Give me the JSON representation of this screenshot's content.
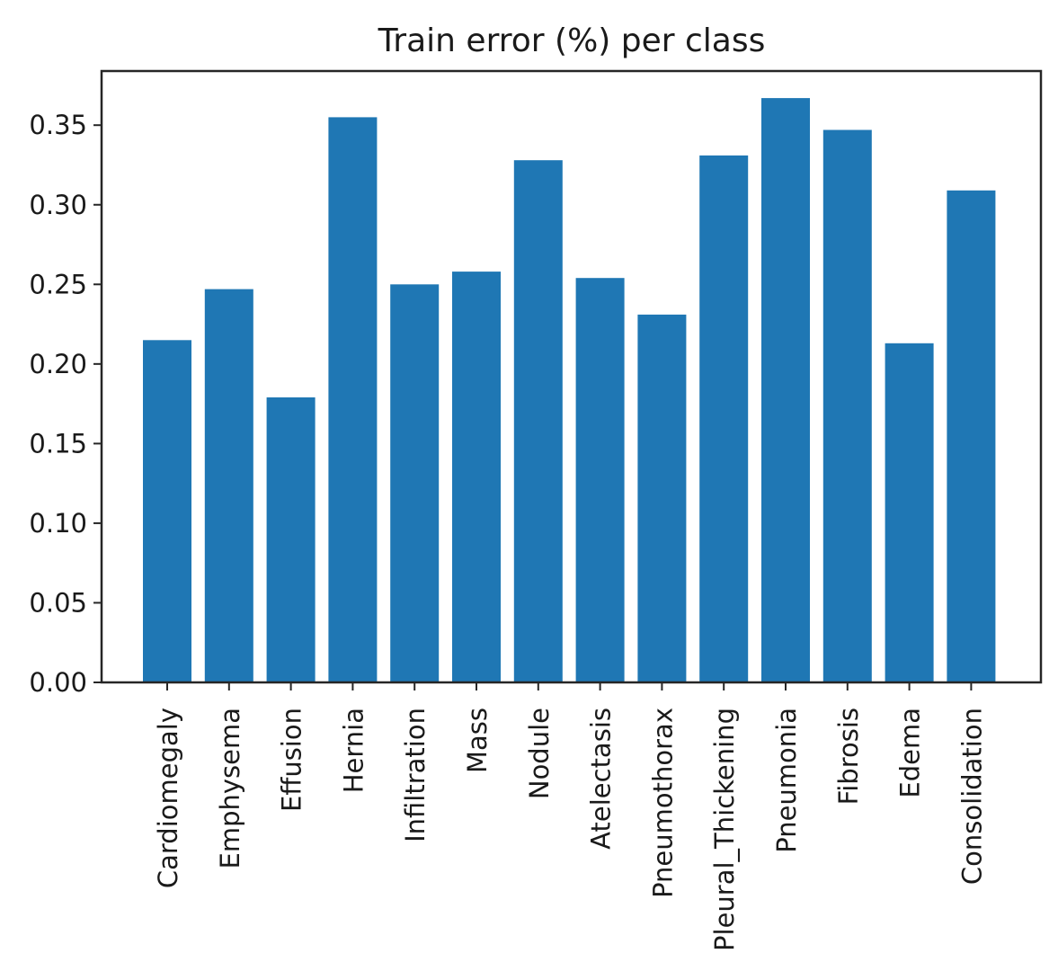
{
  "chart_data": {
    "type": "bar",
    "title": "Train error (%) per class",
    "xlabel": "",
    "ylabel": "",
    "categories": [
      "Cardiomegaly",
      "Emphysema",
      "Effusion",
      "Hernia",
      "Infiltration",
      "Mass",
      "Nodule",
      "Atelectasis",
      "Pneumothorax",
      "Pleural_Thickening",
      "Pneumonia",
      "Fibrosis",
      "Edema",
      "Consolidation"
    ],
    "values": [
      0.215,
      0.247,
      0.179,
      0.355,
      0.25,
      0.258,
      0.328,
      0.254,
      0.231,
      0.331,
      0.367,
      0.347,
      0.213,
      0.309
    ],
    "yticks": [
      "0.00",
      "0.05",
      "0.10",
      "0.15",
      "0.20",
      "0.25",
      "0.30",
      "0.35"
    ],
    "ylim": [
      0,
      0.384
    ],
    "grid": false,
    "bar_color": "#1f77b4"
  }
}
